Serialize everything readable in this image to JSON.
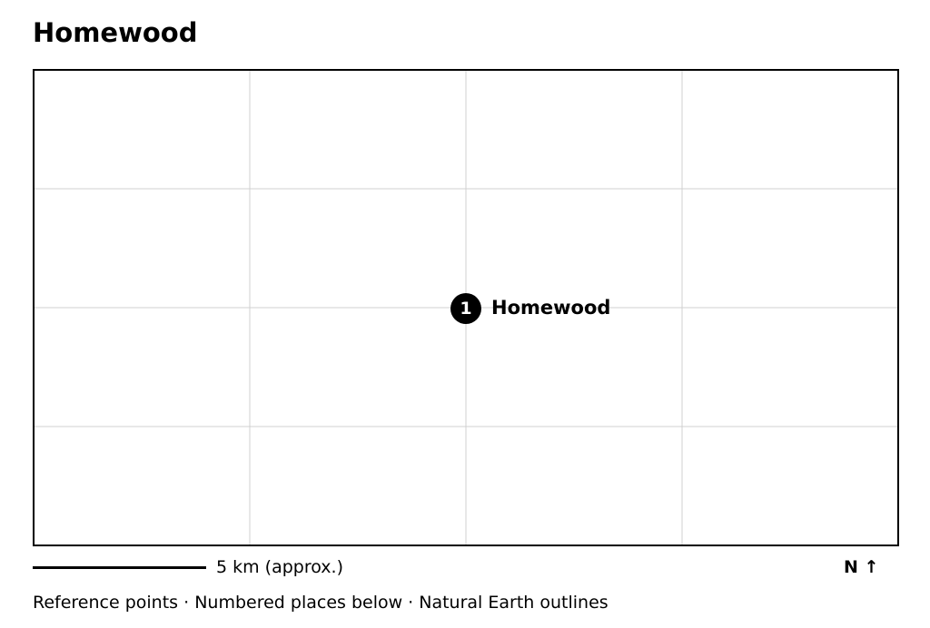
{
  "map": {
    "title": "Homewood",
    "places": [
      {
        "number": "1",
        "name": "Homewood"
      }
    ],
    "scale_label": "5 km (approx.)",
    "north_label": "N ↑",
    "attribution": "Reference points · Numbered places below · Natural Earth outlines",
    "colors": {
      "gridline": "#d0d0d0",
      "frame": "#000000",
      "marker": "#000000",
      "marker_text": "#ffffff"
    }
  }
}
